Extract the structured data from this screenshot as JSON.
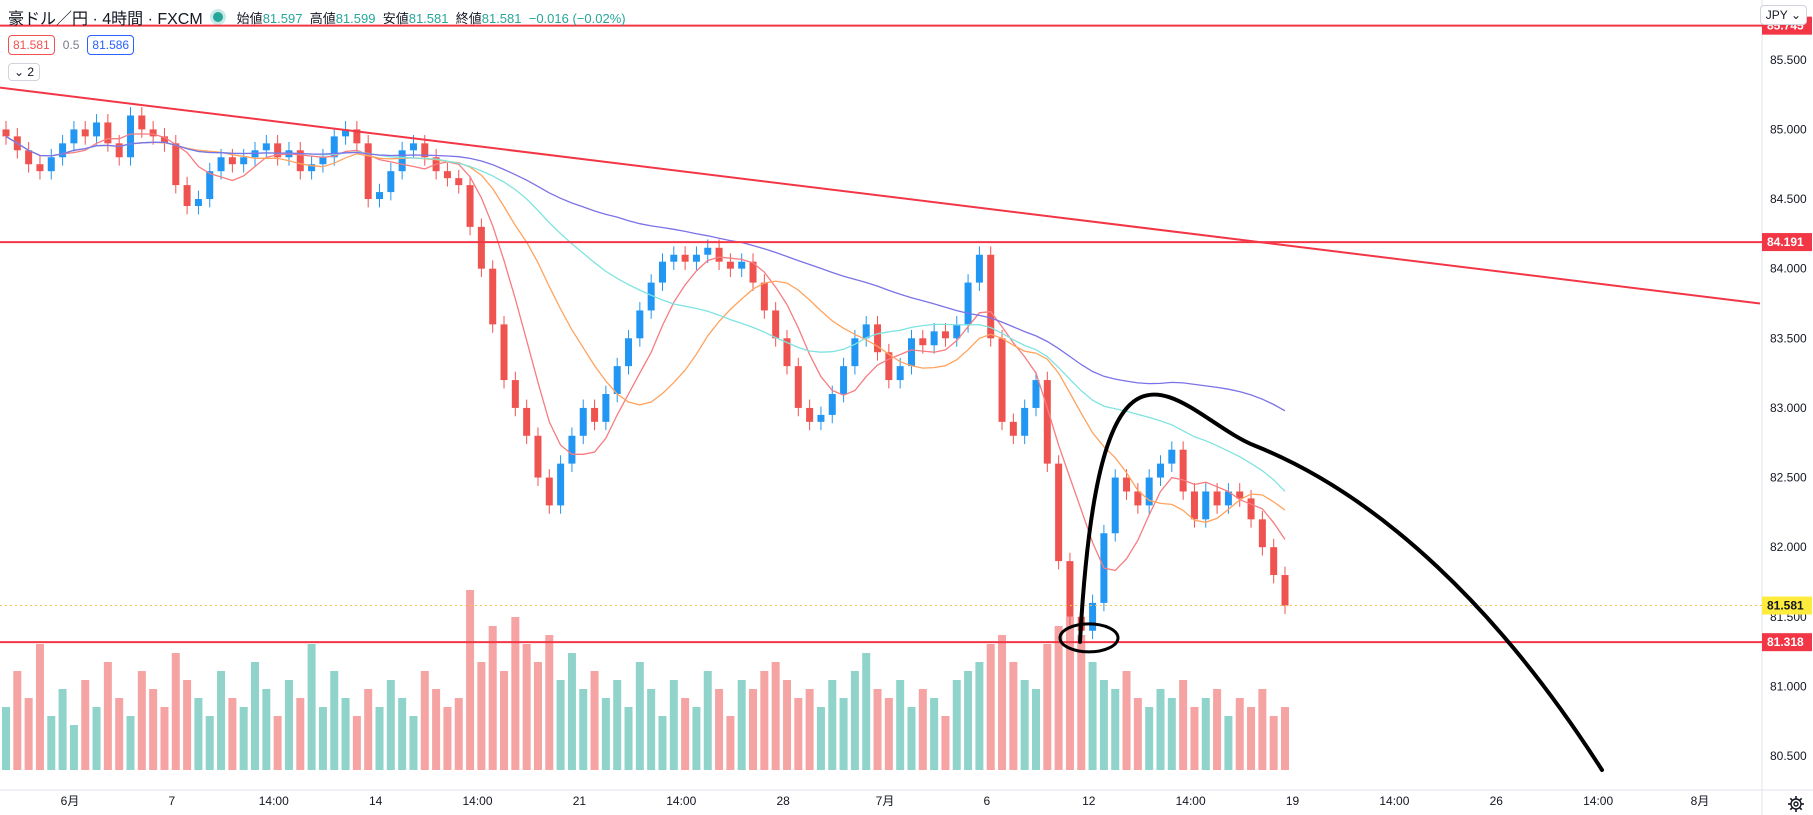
{
  "header": {
    "symbol": "豪ドル／円 · 4時間 · FXCM",
    "open_label": "始値",
    "open": "81.597",
    "high_label": "高値",
    "high": "81.599",
    "low_label": "安値",
    "low": "81.581",
    "close_label": "終値",
    "close": "81.581",
    "change": "−0.016 (−0.02%)"
  },
  "quote": {
    "sell": "81.581",
    "spread": "0.5",
    "buy": "81.586"
  },
  "indicator_toggle": "2",
  "currency_button": "JPY",
  "colors": {
    "up": "#26a69a",
    "down": "#ef5350",
    "up_body": "#2196f3",
    "line_red": "#f23645",
    "ma_fast": "#f77c80",
    "ma_mid": "#ffa35e",
    "ma_slow": "#7fe3e0",
    "ma_long": "#7b72e8",
    "drawing": "#000000"
  },
  "chart_data": {
    "type": "candlestick",
    "y_axis": {
      "min": 80.4,
      "max": 85.8,
      "ticks": [
        "85.500",
        "85.000",
        "84.500",
        "84.000",
        "83.500",
        "83.000",
        "82.500",
        "82.000",
        "81.500",
        "81.000",
        "80.500"
      ]
    },
    "x_tick_labels": [
      "6月",
      "7",
      "14:00",
      "14",
      "14:00",
      "21",
      "14:00",
      "28",
      "7月",
      "6",
      "12",
      "14:00",
      "19",
      "14:00",
      "26",
      "14:00",
      "8月"
    ],
    "horizontal_lines": [
      {
        "label": "85.745",
        "value": 85.745
      },
      {
        "label": "84.191",
        "value": 84.191
      },
      {
        "label": "81.318",
        "value": 81.318
      }
    ],
    "current_price": {
      "label": "81.581",
      "value": 81.581
    },
    "trendline": {
      "from": 85.3,
      "to": 83.75
    },
    "close_series": [
      84.95,
      84.85,
      84.75,
      84.7,
      84.8,
      84.9,
      85.0,
      84.95,
      85.05,
      84.9,
      84.8,
      85.1,
      85.0,
      84.95,
      84.9,
      84.6,
      84.45,
      84.5,
      84.7,
      84.8,
      84.75,
      84.8,
      84.85,
      84.9,
      84.8,
      84.85,
      84.7,
      84.75,
      84.8,
      84.95,
      85.0,
      84.9,
      84.5,
      84.55,
      84.7,
      84.85,
      84.9,
      84.8,
      84.7,
      84.65,
      84.6,
      84.3,
      84.0,
      83.6,
      83.2,
      83.0,
      82.8,
      82.5,
      82.3,
      82.6,
      82.8,
      83.0,
      82.9,
      83.1,
      83.3,
      83.5,
      83.7,
      83.9,
      84.05,
      84.1,
      84.05,
      84.1,
      84.15,
      84.05,
      84.0,
      84.05,
      83.9,
      83.7,
      83.5,
      83.3,
      83.0,
      82.9,
      82.95,
      83.1,
      83.3,
      83.5,
      83.6,
      83.4,
      83.2,
      83.3,
      83.5,
      83.45,
      83.55,
      83.5,
      83.6,
      83.9,
      84.1,
      83.5,
      82.9,
      82.8,
      83.0,
      83.2,
      82.6,
      81.9,
      81.5,
      81.4,
      81.6,
      82.1,
      82.5,
      82.4,
      82.3,
      82.5,
      82.6,
      82.7,
      82.4,
      82.2,
      82.4,
      82.3,
      82.4,
      82.35,
      82.2,
      82.0,
      81.8,
      81.58
    ],
    "volume_series": [
      0.35,
      0.55,
      0.4,
      0.7,
      0.3,
      0.45,
      0.25,
      0.5,
      0.35,
      0.6,
      0.4,
      0.3,
      0.55,
      0.45,
      0.35,
      0.65,
      0.5,
      0.4,
      0.3,
      0.55,
      0.4,
      0.35,
      0.6,
      0.45,
      0.3,
      0.5,
      0.4,
      0.7,
      0.35,
      0.55,
      0.4,
      0.3,
      0.45,
      0.35,
      0.5,
      0.4,
      0.3,
      0.55,
      0.45,
      0.35,
      0.4,
      1.0,
      0.6,
      0.8,
      0.55,
      0.85,
      0.7,
      0.6,
      0.75,
      0.5,
      0.65,
      0.45,
      0.55,
      0.4,
      0.5,
      0.35,
      0.6,
      0.45,
      0.3,
      0.5,
      0.4,
      0.35,
      0.55,
      0.45,
      0.3,
      0.5,
      0.45,
      0.55,
      0.6,
      0.5,
      0.4,
      0.45,
      0.35,
      0.5,
      0.4,
      0.55,
      0.65,
      0.45,
      0.4,
      0.5,
      0.35,
      0.45,
      0.4,
      0.3,
      0.5,
      0.55,
      0.6,
      0.7,
      0.75,
      0.6,
      0.5,
      0.45,
      0.7,
      0.8,
      0.85,
      0.75,
      0.6,
      0.5,
      0.45,
      0.55,
      0.4,
      0.35,
      0.45,
      0.4,
      0.5,
      0.35,
      0.4,
      0.45,
      0.3,
      0.4,
      0.35,
      0.45,
      0.3,
      0.35
    ]
  }
}
